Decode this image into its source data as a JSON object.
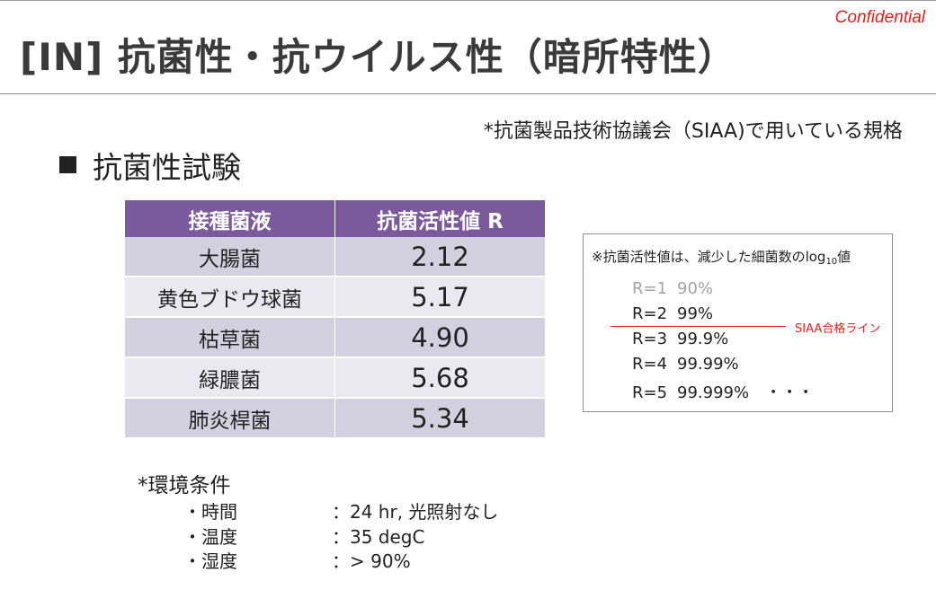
{
  "header": {
    "confidential": "Confidential",
    "title": "[IN] 抗菌性・抗ウイルス性（暗所特性）"
  },
  "standard_note": "*抗菌製品技術協議会（SIAA)で用いている規格",
  "section": {
    "heading": "抗菌性試験"
  },
  "table": {
    "headers": [
      "接種菌液",
      "抗菌活性値 R"
    ],
    "rows": [
      {
        "bacteria": "大腸菌",
        "value": "2.12"
      },
      {
        "bacteria": "黄色ブドウ球菌",
        "value": "5.17"
      },
      {
        "bacteria": "枯草菌",
        "value": "4.90"
      },
      {
        "bacteria": "緑膿菌",
        "value": "5.68"
      },
      {
        "bacteria": "肺炎桿菌",
        "value": "5.34"
      }
    ]
  },
  "legend": {
    "note_prefix": "※抗菌活性値は、減少した細菌数のlog",
    "note_sub": "10",
    "note_suffix": "値",
    "rows": [
      {
        "r": "R=1",
        "pct": "90%",
        "extra": ""
      },
      {
        "r": "R=2",
        "pct": "99%",
        "extra": ""
      },
      {
        "r": "R=3",
        "pct": "99.9%",
        "extra": ""
      },
      {
        "r": "R=4",
        "pct": "99.99%",
        "extra": ""
      },
      {
        "r": "R=5",
        "pct": "99.999%",
        "extra": "・・・"
      }
    ],
    "pass_label": "SIAA合格ライン",
    "accent_color": "#d9261c"
  },
  "conditions": {
    "title": "*環境条件",
    "items": [
      {
        "label": "・時間",
        "value": "：24 hr,  光照射なし"
      },
      {
        "label": "・温度",
        "value": "：35 degC"
      },
      {
        "label": "・湿度",
        "value": "：> 90%"
      }
    ]
  },
  "colors": {
    "table_header": "#7a5a9a",
    "row_dark": "#d3d0e0",
    "row_light": "#eae8f0",
    "confidential": "#e0201a"
  }
}
